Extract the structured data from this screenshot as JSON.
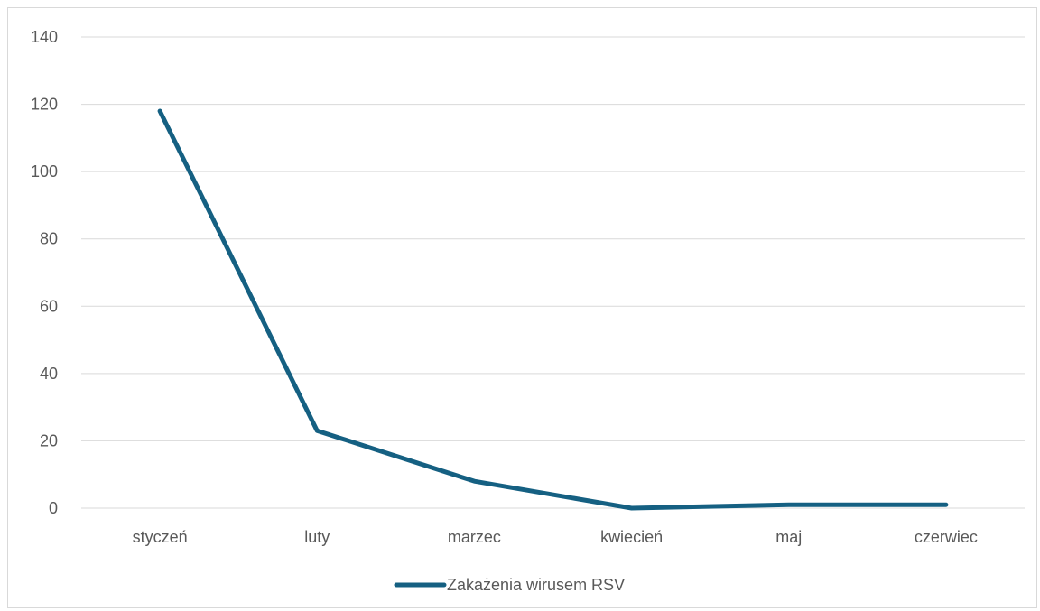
{
  "chart_data": {
    "type": "line",
    "title": "",
    "xlabel": "",
    "ylabel": "",
    "categories": [
      "styczeń",
      "luty",
      "marzec",
      "kwiecień",
      "maj",
      "czerwiec"
    ],
    "series": [
      {
        "name": "Zakażenia wirusem RSV",
        "values": [
          118,
          23,
          8,
          0,
          1,
          1
        ],
        "color": "#156082"
      }
    ],
    "ylim": [
      0,
      140
    ],
    "yticks": [
      0,
      20,
      40,
      60,
      80,
      100,
      120,
      140
    ],
    "grid": "horizontal",
    "legend_position": "bottom"
  }
}
